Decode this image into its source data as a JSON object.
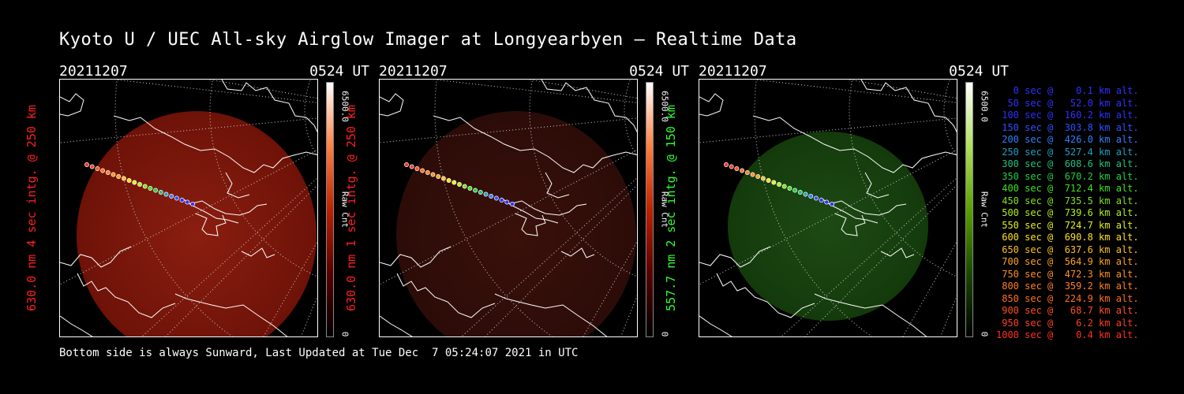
{
  "title": "Kyoto U / UEC All-sky Airglow Imager at Longyearbyen — Realtime Data",
  "panels": [
    {
      "date": "20211207",
      "time": "0524 UT",
      "ylabel": "630.0 nm 4 sec intg. @ 250 km",
      "label_color": "#ff2020",
      "cbar_max": "6500.0",
      "cbar_min": "0",
      "cbar_unit": "Raw Cnt",
      "intensity": "bright",
      "tint": "red"
    },
    {
      "date": "20211207",
      "time": "0524 UT",
      "ylabel": "630.0 nm 1 sec intg. @ 250 km",
      "label_color": "#ff2020",
      "cbar_max": "6500.0",
      "cbar_min": "0",
      "cbar_unit": "Raw Cnt",
      "intensity": "dim",
      "tint": "red"
    },
    {
      "date": "20211207",
      "time": "0524 UT",
      "ylabel": "557.7 nm 2 sec intg. @ 150 km",
      "label_color": "#30ff30",
      "cbar_max": "6500.0",
      "cbar_min": "0",
      "cbar_unit": "Raw Cnt",
      "intensity": "dim",
      "tint": "green"
    }
  ],
  "trajectory_legend": [
    {
      "text": "   0 sec @    0.1 km alt.",
      "color": "#3030ff"
    },
    {
      "text": "  50 sec @   52.0 km alt.",
      "color": "#3030ff"
    },
    {
      "text": " 100 sec @  160.2 km alt.",
      "color": "#3030ff"
    },
    {
      "text": " 150 sec @  303.8 km alt.",
      "color": "#3050ff"
    },
    {
      "text": " 200 sec @  426.0 km alt.",
      "color": "#3080ff"
    },
    {
      "text": " 250 sec @  527.4 km alt.",
      "color": "#20a0c0"
    },
    {
      "text": " 300 sec @  608.6 km alt.",
      "color": "#20c080"
    },
    {
      "text": " 350 sec @  670.2 km alt.",
      "color": "#20d040"
    },
    {
      "text": " 400 sec @  712.4 km alt.",
      "color": "#40e020"
    },
    {
      "text": " 450 sec @  735.5 km alt.",
      "color": "#80e020"
    },
    {
      "text": " 500 sec @  739.6 km alt.",
      "color": "#b0f020"
    },
    {
      "text": " 550 sec @  724.7 km alt.",
      "color": "#e0f020"
    },
    {
      "text": " 600 sec @  690.8 km alt.",
      "color": "#ffe020"
    },
    {
      "text": " 650 sec @  637.6 km alt.",
      "color": "#ffc020"
    },
    {
      "text": " 700 sec @  564.9 km alt.",
      "color": "#ffa020"
    },
    {
      "text": " 750 sec @  472.3 km alt.",
      "color": "#ff9020"
    },
    {
      "text": " 800 sec @  359.2 km alt.",
      "color": "#ff8020"
    },
    {
      "text": " 850 sec @  224.9 km alt.",
      "color": "#ff7020"
    },
    {
      "text": " 900 sec @   68.7 km alt.",
      "color": "#ff5020"
    },
    {
      "text": " 950 sec @    6.2 km alt.",
      "color": "#ff4020"
    },
    {
      "text": "1000 sec @    0.4 km alt.",
      "color": "#ff3020"
    }
  ],
  "footer": "Bottom side is always Sunward, Last Updated at Tue Dec  7 05:24:07 2021 in UTC"
}
